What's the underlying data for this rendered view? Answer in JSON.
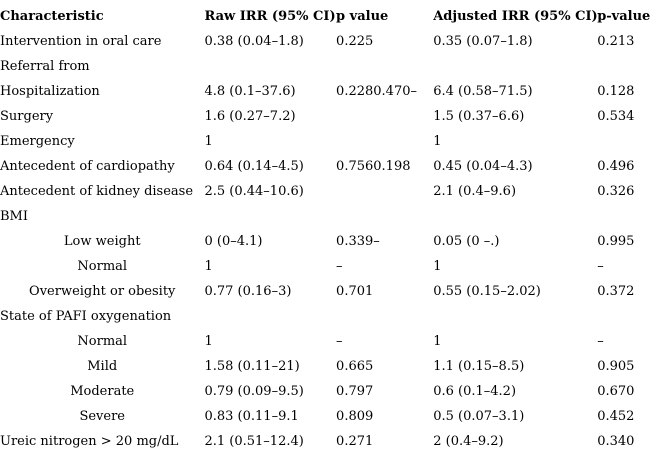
{
  "table": {
    "columns": [
      {
        "key": "characteristic",
        "label": "Characteristic"
      },
      {
        "key": "raw-irr",
        "label": "Raw IRR (95% CI)"
      },
      {
        "key": "p-value",
        "label": "p value"
      },
      {
        "key": "adjusted-irr",
        "label": "Adjusted IRR (95% CI)"
      },
      {
        "key": "p-value-adjusted",
        "label": "p-value"
      }
    ],
    "rows": [
      {
        "align": "left",
        "cells": [
          "Intervention in oral care",
          "0.38 (0.04–1.8)",
          "0.225",
          "0.35 (0.07–1.8)",
          "0.213"
        ]
      },
      {
        "align": "left",
        "cells": [
          "Referral from",
          "",
          "",
          "",
          ""
        ]
      },
      {
        "align": "left",
        "cells": [
          "Hospitalization",
          "4.8 (0.1–37.6)",
          "0.2280.470–",
          "6.4 (0.58–71.5)",
          "0.128"
        ]
      },
      {
        "align": "left",
        "cells": [
          "Surgery",
          "1.6 (0.27–7.2)",
          "",
          "1.5 (0.37–6.6)",
          "0.534"
        ]
      },
      {
        "align": "left",
        "cells": [
          "Emergency",
          "1",
          "",
          "1",
          ""
        ]
      },
      {
        "align": "left",
        "cells": [
          "Antecedent of cardiopathy",
          "0.64 (0.14–4.5)",
          "0.7560.198",
          "0.45 (0.04–4.3)",
          "0.496"
        ]
      },
      {
        "align": "left",
        "cells": [
          "Antecedent of kidney disease",
          "2.5 (0.44–10.6)",
          "",
          "2.1 (0.4–9.6)",
          "0.326"
        ]
      },
      {
        "align": "left",
        "cells": [
          "BMI",
          "",
          "",
          "",
          ""
        ]
      },
      {
        "align": "center",
        "cells": [
          "Low weight",
          "0 (0–4.1)",
          "0.339–",
          "0.05 (0 –.)",
          "0.995"
        ]
      },
      {
        "align": "center",
        "cells": [
          "Normal",
          "1",
          "–",
          "1",
          "–"
        ]
      },
      {
        "align": "center",
        "cells": [
          "Overweight or obesity",
          "0.77 (0.16–3)",
          "0.701",
          "0.55 (0.15–2.02)",
          "0.372"
        ]
      },
      {
        "align": "left",
        "cells": [
          "State of PAFI oxygenation",
          "",
          "",
          "",
          ""
        ]
      },
      {
        "align": "center",
        "cells": [
          "Normal",
          "1",
          "–",
          "1",
          "–"
        ]
      },
      {
        "align": "center",
        "cells": [
          "Mild",
          "1.58 (0.11–21)",
          "0.665",
          "1.1 (0.15–8.5)",
          "0.905"
        ]
      },
      {
        "align": "center",
        "cells": [
          "Moderate",
          "0.79 (0.09–9.5)",
          "0.797",
          "0.6 (0.1–4.2)",
          "0.670"
        ]
      },
      {
        "align": "center",
        "cells": [
          "Severe",
          "0.83 (0.11–9.1",
          "0.809",
          "0.5 (0.07–3.1)",
          "0.452"
        ]
      },
      {
        "align": "left",
        "cells": [
          "Ureic nitrogen > 20 mg/dL",
          "2.1 (0.51–12.4)",
          "0.271",
          "2 (0.4–9.2)",
          "0.340"
        ]
      }
    ]
  }
}
